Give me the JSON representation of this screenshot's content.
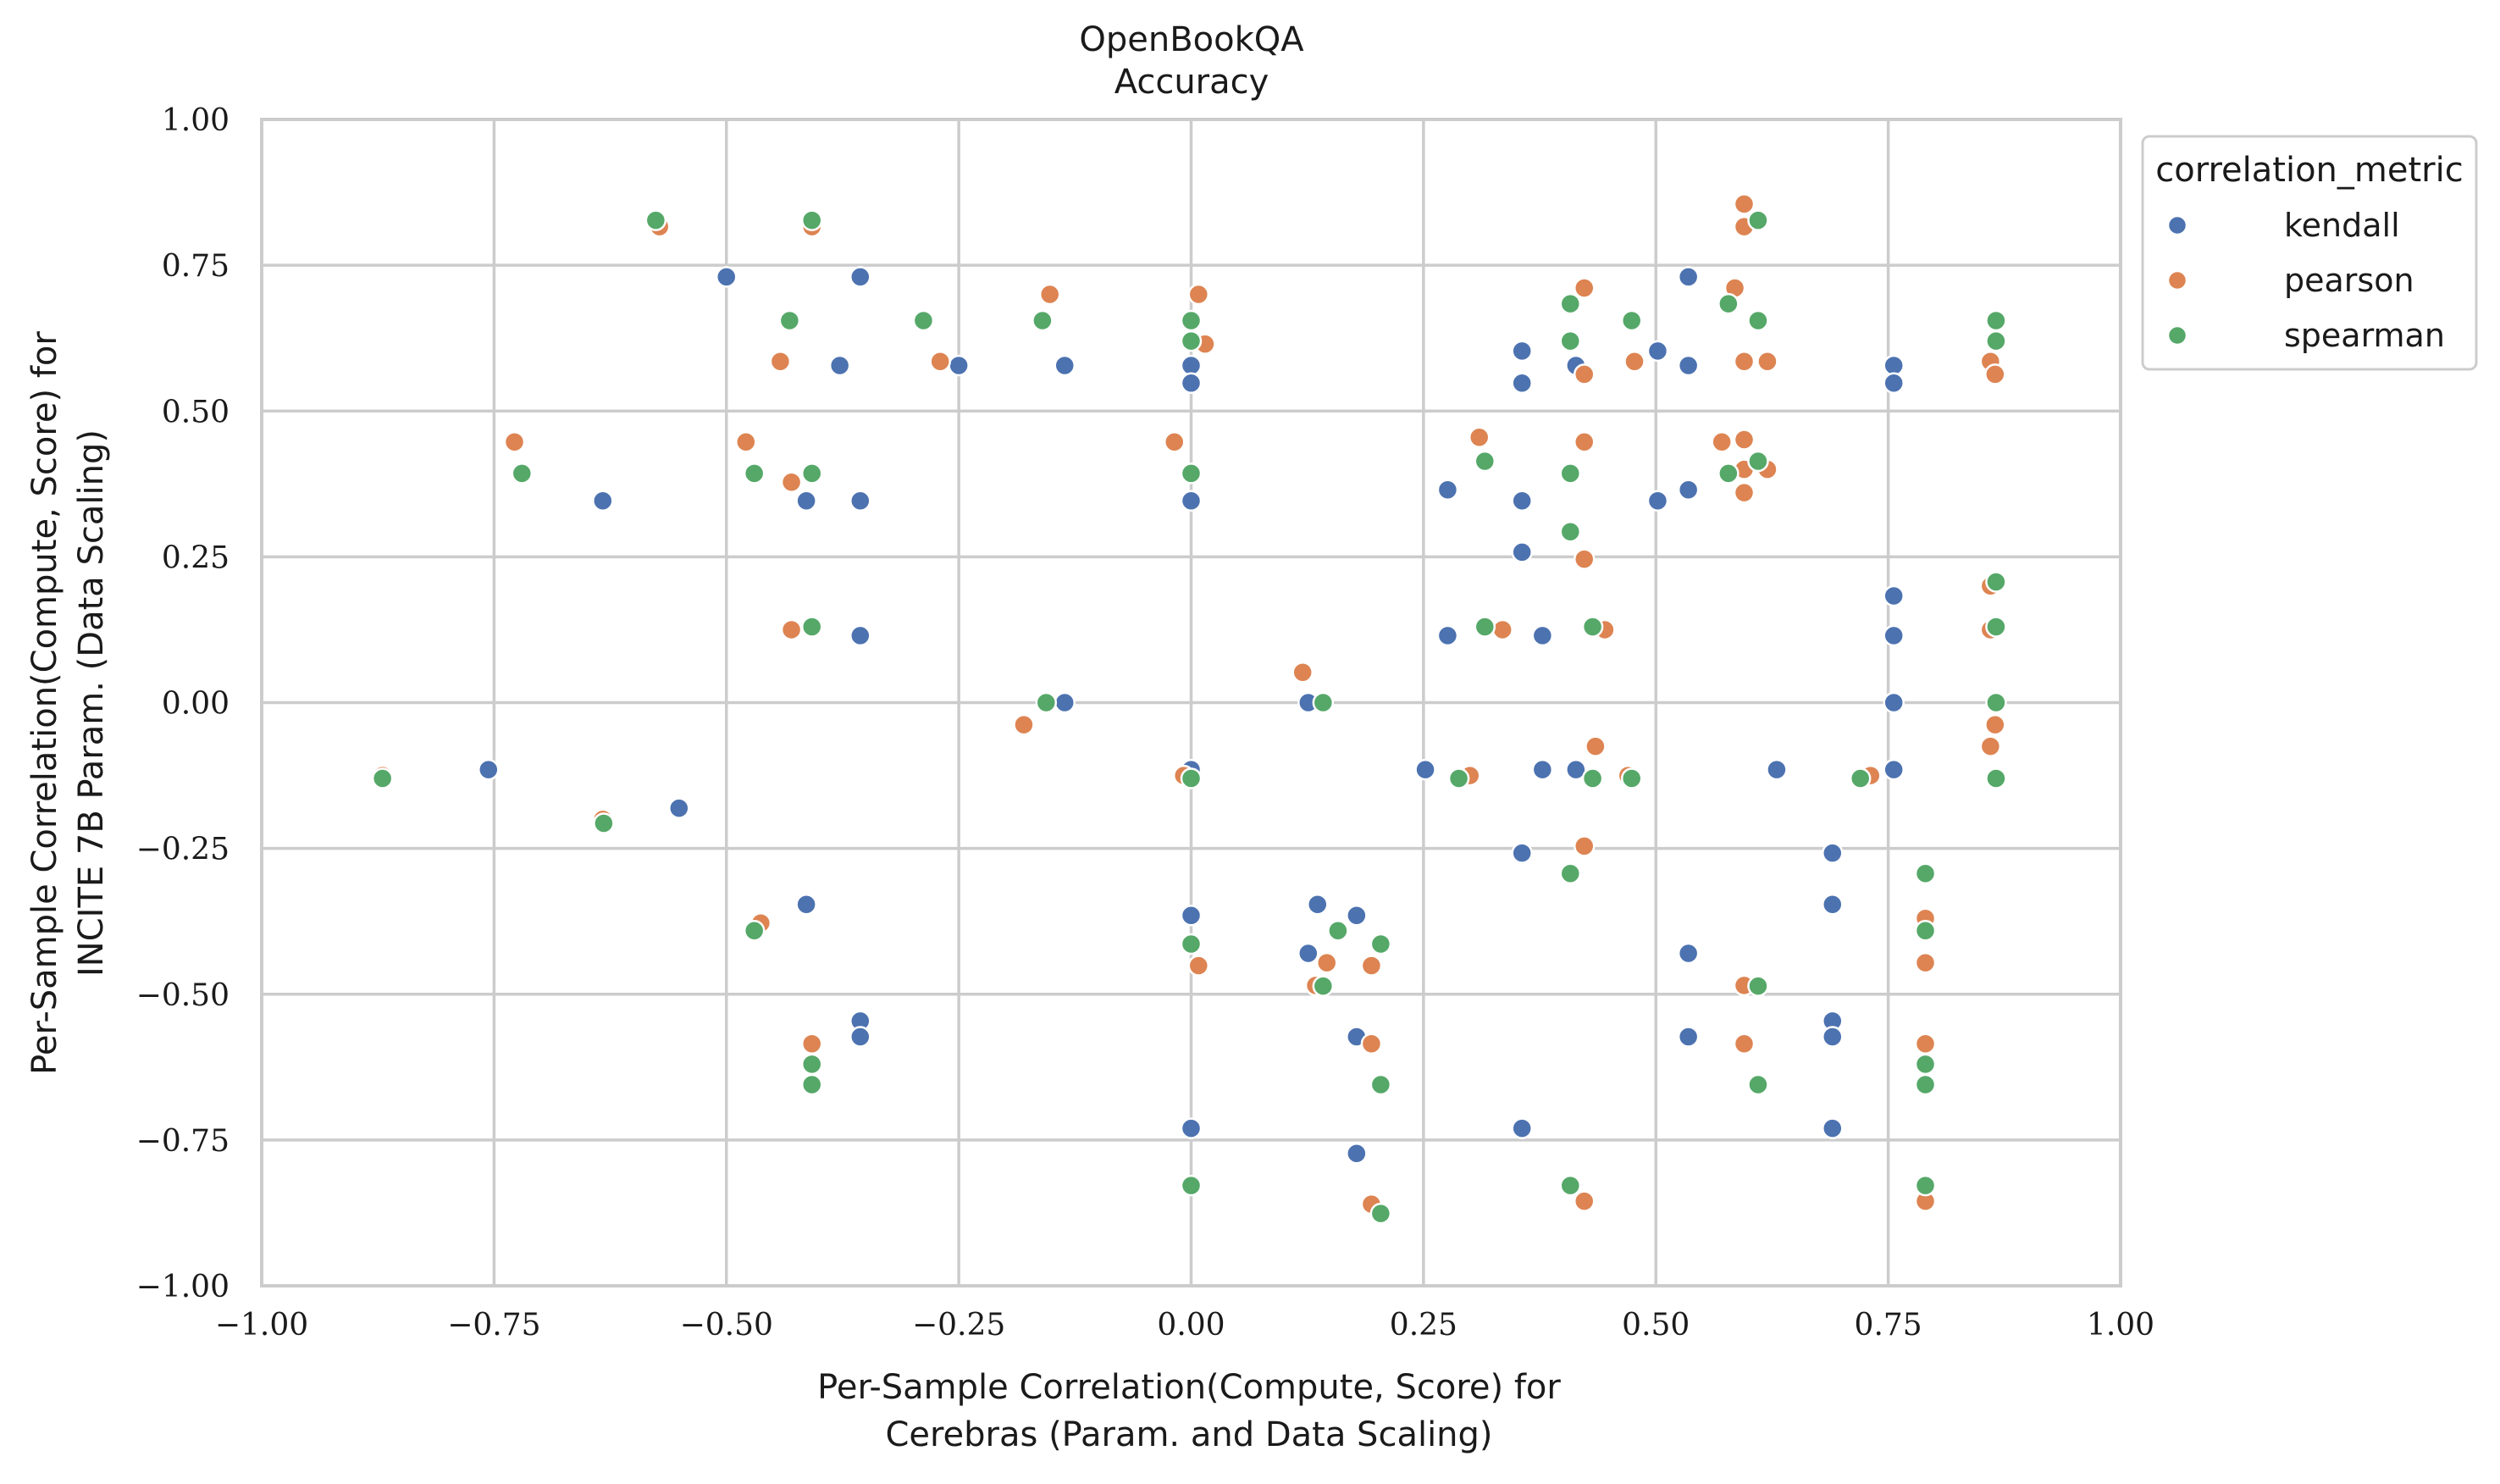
{
  "chart_data": {
    "type": "scatter",
    "title": "OpenBookQA",
    "subtitle": "Accuracy",
    "xlabel": [
      "Per-Sample Correlation(Compute, Score) for",
      "Cerebras (Param. and Data Scaling)"
    ],
    "ylabel": [
      "Per-Sample Correlation(Compute, Score) for",
      "INCITE 7B Param. (Data Scaling)"
    ],
    "xlim": [
      -1.0,
      1.0
    ],
    "ylim": [
      -1.0,
      1.0
    ],
    "xticks": [
      -1.0,
      -0.75,
      -0.5,
      -0.25,
      0.0,
      0.25,
      0.5,
      0.75,
      1.0
    ],
    "yticks": [
      -1.0,
      -0.75,
      -0.5,
      -0.25,
      0.0,
      0.25,
      0.5,
      0.75,
      1.0
    ],
    "xtick_labels": [
      "−1.00",
      "−0.75",
      "−0.50",
      "−0.25",
      "0.00",
      "0.25",
      "0.50",
      "0.75",
      "1.00"
    ],
    "ytick_labels": [
      "−1.00",
      "−0.75",
      "−0.50",
      "−0.25",
      "0.00",
      "0.25",
      "0.50",
      "0.75",
      "1.00"
    ],
    "grid": true,
    "legend": {
      "title": "correlation_metric",
      "position": "upper-right-outside"
    },
    "series": [
      {
        "name": "kendall",
        "color": "#4c72b0",
        "points": [
          [
            -0.756,
            -0.115
          ],
          [
            -0.633,
            0.346
          ],
          [
            -0.551,
            -0.181
          ],
          [
            -0.5,
            0.73
          ],
          [
            -0.378,
            0.578
          ],
          [
            -0.414,
            0.346
          ],
          [
            -0.414,
            -0.346
          ],
          [
            -0.356,
            0.73
          ],
          [
            -0.356,
            0.346
          ],
          [
            -0.356,
            0.115
          ],
          [
            -0.356,
            -0.546
          ],
          [
            -0.356,
            -0.573
          ],
          [
            -0.25,
            0.578
          ],
          [
            -0.136,
            0.578
          ],
          [
            -0.136,
            0.0
          ],
          [
            0.0,
            0.578
          ],
          [
            0.0,
            0.548
          ],
          [
            0.0,
            0.346
          ],
          [
            0.0,
            -0.115
          ],
          [
            0.0,
            -0.365
          ],
          [
            0.0,
            -0.73
          ],
          [
            0.126,
            0.0
          ],
          [
            0.126,
            -0.43
          ],
          [
            0.136,
            -0.346
          ],
          [
            0.178,
            -0.365
          ],
          [
            0.178,
            -0.573
          ],
          [
            0.178,
            -0.773
          ],
          [
            0.252,
            -0.115
          ],
          [
            0.276,
            0.365
          ],
          [
            0.276,
            0.115
          ],
          [
            0.356,
            0.603
          ],
          [
            0.356,
            0.548
          ],
          [
            0.356,
            0.346
          ],
          [
            0.356,
            0.258
          ],
          [
            0.356,
            -0.258
          ],
          [
            0.356,
            -0.73
          ],
          [
            0.378,
            0.115
          ],
          [
            0.378,
            -0.115
          ],
          [
            0.414,
            0.578
          ],
          [
            0.414,
            -0.115
          ],
          [
            0.502,
            0.603
          ],
          [
            0.502,
            0.346
          ],
          [
            0.535,
            0.73
          ],
          [
            0.535,
            0.578
          ],
          [
            0.535,
            0.365
          ],
          [
            0.535,
            -0.43
          ],
          [
            0.535,
            -0.573
          ],
          [
            0.63,
            -0.115
          ],
          [
            0.69,
            -0.258
          ],
          [
            0.69,
            -0.346
          ],
          [
            0.69,
            -0.546
          ],
          [
            0.69,
            -0.573
          ],
          [
            0.69,
            -0.73
          ],
          [
            0.756,
            0.578
          ],
          [
            0.756,
            0.548
          ],
          [
            0.756,
            0.183
          ],
          [
            0.756,
            0.115
          ],
          [
            0.756,
            0.0
          ],
          [
            0.756,
            -0.115
          ]
        ]
      },
      {
        "name": "pearson",
        "color": "#dd8452",
        "points": [
          [
            -0.87,
            -0.125
          ],
          [
            -0.728,
            0.447
          ],
          [
            -0.633,
            -0.2
          ],
          [
            -0.572,
            0.816
          ],
          [
            -0.479,
            0.447
          ],
          [
            -0.463,
            -0.378
          ],
          [
            -0.442,
            0.585
          ],
          [
            -0.43,
            0.378
          ],
          [
            -0.43,
            0.125
          ],
          [
            -0.408,
            0.816
          ],
          [
            -0.408,
            -0.585
          ],
          [
            -0.27,
            0.585
          ],
          [
            -0.152,
            0.7
          ],
          [
            -0.18,
            -0.038
          ],
          [
            -0.018,
            0.447
          ],
          [
            -0.008,
            -0.125
          ],
          [
            0.008,
            0.7
          ],
          [
            0.015,
            0.615
          ],
          [
            0.008,
            -0.451
          ],
          [
            0.12,
            0.052
          ],
          [
            0.134,
            -0.485
          ],
          [
            0.146,
            -0.446
          ],
          [
            0.194,
            -0.451
          ],
          [
            0.194,
            -0.585
          ],
          [
            0.194,
            -0.86
          ],
          [
            0.3,
            -0.125
          ],
          [
            0.31,
            0.455
          ],
          [
            0.335,
            0.125
          ],
          [
            0.423,
            0.447
          ],
          [
            0.423,
            0.246
          ],
          [
            0.423,
            0.711
          ],
          [
            0.423,
            0.563
          ],
          [
            0.423,
            -0.246
          ],
          [
            0.435,
            -0.075
          ],
          [
            0.445,
            0.125
          ],
          [
            0.47,
            -0.125
          ],
          [
            0.423,
            -0.855
          ],
          [
            0.477,
            0.585
          ],
          [
            0.571,
            0.447
          ],
          [
            0.585,
            0.711
          ],
          [
            0.595,
            0.855
          ],
          [
            0.595,
            0.816
          ],
          [
            0.595,
            0.585
          ],
          [
            0.595,
            0.451
          ],
          [
            0.595,
            0.4
          ],
          [
            0.595,
            0.36
          ],
          [
            0.595,
            -0.485
          ],
          [
            0.595,
            -0.585
          ],
          [
            0.62,
            0.585
          ],
          [
            0.62,
            0.4
          ],
          [
            0.731,
            -0.125
          ],
          [
            0.79,
            -0.37
          ],
          [
            0.79,
            -0.446
          ],
          [
            0.79,
            -0.585
          ],
          [
            0.79,
            -0.855
          ],
          [
            0.86,
            0.585
          ],
          [
            0.865,
            0.563
          ],
          [
            0.86,
            0.2
          ],
          [
            0.86,
            0.125
          ],
          [
            0.86,
            -0.075
          ],
          [
            0.865,
            -0.038
          ]
        ]
      },
      {
        "name": "spearman",
        "color": "#55a868",
        "points": [
          [
            -0.87,
            -0.13
          ],
          [
            -0.72,
            0.393
          ],
          [
            -0.632,
            -0.207
          ],
          [
            -0.576,
            0.827
          ],
          [
            -0.47,
            0.393
          ],
          [
            -0.47,
            -0.391
          ],
          [
            -0.432,
            0.655
          ],
          [
            -0.408,
            0.827
          ],
          [
            -0.408,
            0.393
          ],
          [
            -0.408,
            0.13
          ],
          [
            -0.408,
            -0.62
          ],
          [
            -0.408,
            -0.655
          ],
          [
            -0.288,
            0.655
          ],
          [
            -0.16,
            0.655
          ],
          [
            -0.156,
            0.0
          ],
          [
            0.0,
            0.655
          ],
          [
            0.0,
            0.62
          ],
          [
            0.0,
            0.393
          ],
          [
            0.0,
            -0.13
          ],
          [
            0.0,
            -0.414
          ],
          [
            0.0,
            -0.828
          ],
          [
            0.142,
            0.0
          ],
          [
            0.142,
            -0.486
          ],
          [
            0.158,
            -0.391
          ],
          [
            0.204,
            -0.414
          ],
          [
            0.204,
            -0.655
          ],
          [
            0.204,
            -0.876
          ],
          [
            0.288,
            -0.13
          ],
          [
            0.316,
            0.414
          ],
          [
            0.316,
            0.13
          ],
          [
            0.408,
            0.684
          ],
          [
            0.408,
            0.62
          ],
          [
            0.408,
            0.393
          ],
          [
            0.408,
            0.293
          ],
          [
            0.408,
            -0.293
          ],
          [
            0.408,
            -0.828
          ],
          [
            0.432,
            0.13
          ],
          [
            0.432,
            -0.13
          ],
          [
            0.474,
            0.655
          ],
          [
            0.474,
            -0.13
          ],
          [
            0.578,
            0.684
          ],
          [
            0.578,
            0.393
          ],
          [
            0.61,
            0.827
          ],
          [
            0.61,
            0.655
          ],
          [
            0.61,
            0.414
          ],
          [
            0.61,
            -0.486
          ],
          [
            0.61,
            -0.655
          ],
          [
            0.72,
            -0.13
          ],
          [
            0.79,
            -0.293
          ],
          [
            0.79,
            -0.391
          ],
          [
            0.79,
            -0.62
          ],
          [
            0.79,
            -0.655
          ],
          [
            0.79,
            -0.828
          ],
          [
            0.866,
            0.655
          ],
          [
            0.866,
            0.62
          ],
          [
            0.866,
            0.207
          ],
          [
            0.866,
            0.13
          ],
          [
            0.866,
            0.0
          ],
          [
            0.866,
            -0.13
          ]
        ]
      }
    ]
  }
}
